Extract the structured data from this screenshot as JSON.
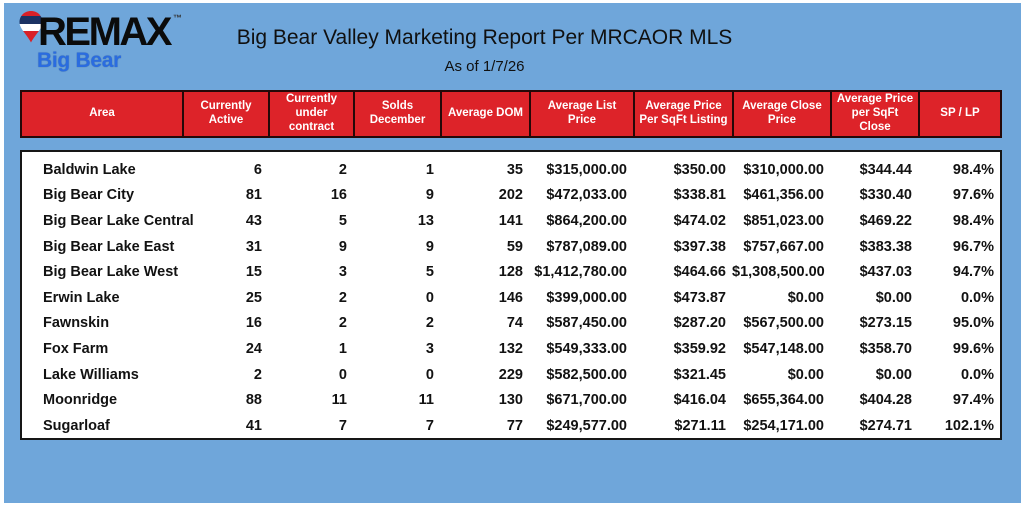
{
  "page": {
    "background_color": "#ffffff",
    "card_color": "#6fa6da"
  },
  "logo": {
    "brand": "REMAX",
    "trademark": "™",
    "sub_brand": "Big Bear",
    "brand_color": "#0b0b0b",
    "sub_brand_color": "#2a6ce0",
    "balloon_colors": {
      "red": "#d92128",
      "navy": "#1b3263",
      "white": "#ffffff"
    }
  },
  "header": {
    "title": "Big Bear Valley Marketing Report Per MRCAOR MLS",
    "subtitle": "As of 1/7/26"
  },
  "table": {
    "header_bg": "#dd2329",
    "header_text_color": "#ffffff",
    "columns": [
      "Area",
      "Currently Active",
      "Currently under contract",
      "Solds December",
      "Average DOM",
      "Average List Price",
      "Average Price Per SqFt Listing",
      "Average Close Price",
      "Average Price per SqFt Close",
      "SP / LP"
    ],
    "rows": [
      [
        "Baldwin Lake",
        "6",
        "2",
        "1",
        "35",
        "$315,000.00",
        "$350.00",
        "$310,000.00",
        "$344.44",
        "98.4%"
      ],
      [
        "Big Bear City",
        "81",
        "16",
        "9",
        "202",
        "$472,033.00",
        "$338.81",
        "$461,356.00",
        "$330.40",
        "97.6%"
      ],
      [
        "Big Bear Lake Central",
        "43",
        "5",
        "13",
        "141",
        "$864,200.00",
        "$474.02",
        "$851,023.00",
        "$469.22",
        "98.4%"
      ],
      [
        "Big Bear Lake East",
        "31",
        "9",
        "9",
        "59",
        "$787,089.00",
        "$397.38",
        "$757,667.00",
        "$383.38",
        "96.7%"
      ],
      [
        "Big Bear Lake West",
        "15",
        "3",
        "5",
        "128",
        "$1,412,780.00",
        "$464.66",
        "$1,308,500.00",
        "$437.03",
        "94.7%"
      ],
      [
        "Erwin Lake",
        "25",
        "2",
        "0",
        "146",
        "$399,000.00",
        "$473.87",
        "$0.00",
        "$0.00",
        "0.0%"
      ],
      [
        "Fawnskin",
        "16",
        "2",
        "2",
        "74",
        "$587,450.00",
        "$287.20",
        "$567,500.00",
        "$273.15",
        "95.0%"
      ],
      [
        "Fox Farm",
        "24",
        "1",
        "3",
        "132",
        "$549,333.00",
        "$359.92",
        "$547,148.00",
        "$358.70",
        "99.6%"
      ],
      [
        "Lake Williams",
        "2",
        "0",
        "0",
        "229",
        "$582,500.00",
        "$321.45",
        "$0.00",
        "$0.00",
        "0.0%"
      ],
      [
        "Moonridge",
        "88",
        "11",
        "11",
        "130",
        "$671,700.00",
        "$416.04",
        "$655,364.00",
        "$404.28",
        "97.4%"
      ],
      [
        "Sugarloaf",
        "41",
        "7",
        "7",
        "77",
        "$249,577.00",
        "$271.11",
        "$254,171.00",
        "$274.71",
        "102.1%"
      ]
    ]
  }
}
